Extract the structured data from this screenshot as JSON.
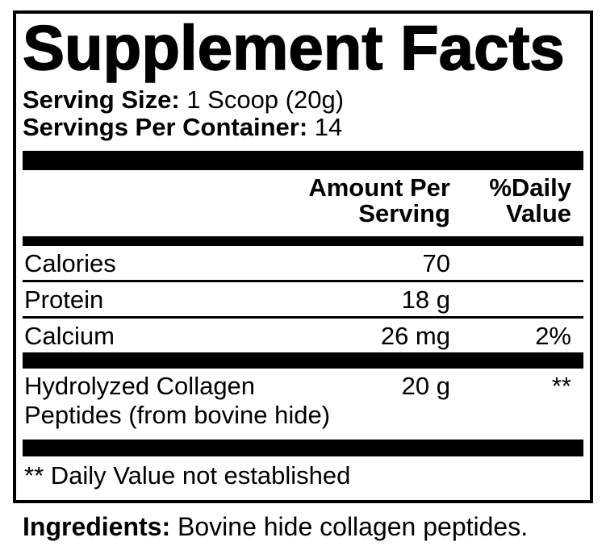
{
  "label": {
    "title": "Supplement Facts",
    "serving_size_label": "Serving Size:",
    "serving_size_value": " 1 Scoop (20g)",
    "servings_per_container_label": "Servings Per Container:",
    "servings_per_container_value": " 14",
    "header": {
      "amount_line1": "Amount Per",
      "amount_line2": "Serving",
      "dv_line1": "%Daily",
      "dv_line2": "Value"
    },
    "rows": [
      {
        "name": "Calories",
        "amount": "70",
        "dv": ""
      },
      {
        "name": "Protein",
        "amount": "18 g",
        "dv": ""
      },
      {
        "name": "Calcium",
        "amount": "26 mg",
        "dv": "2%"
      },
      {
        "name_line1": "Hydrolyzed Collagen",
        "name_line2": "Peptides (from bovine hide)",
        "amount": "20 g",
        "dv": "**"
      }
    ],
    "footnote": "** Daily Value not established",
    "ingredients_label": "Ingredients:",
    "ingredients_value": " Bovine hide collagen peptides."
  },
  "colors": {
    "ink": "#000000",
    "paper": "#ffffff"
  }
}
